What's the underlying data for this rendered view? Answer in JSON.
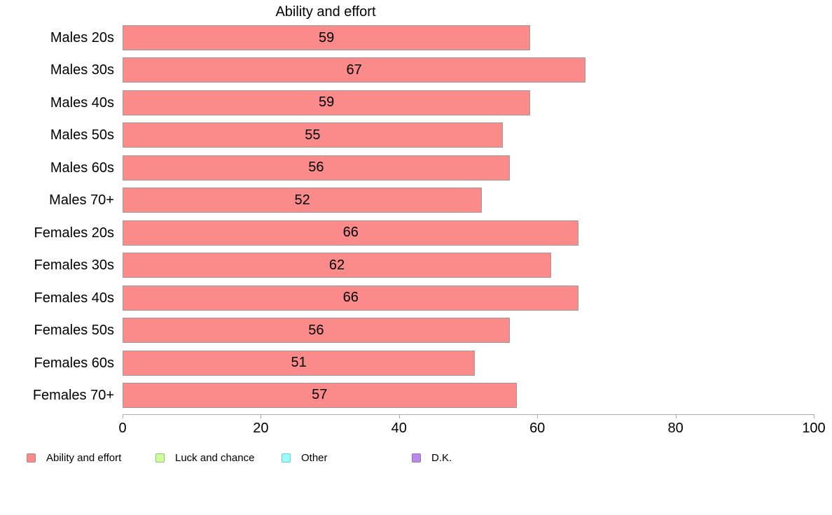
{
  "chart_data": {
    "type": "bar",
    "orientation": "horizontal",
    "title": "Ability and effort",
    "categories": [
      "Males 20s",
      "Males 30s",
      "Males 40s",
      "Males 50s",
      "Males 60s",
      "Males 70+",
      "Females 20s",
      "Females 30s",
      "Females 40s",
      "Females 50s",
      "Females 60s",
      "Females 70+"
    ],
    "values": [
      59,
      67,
      59,
      55,
      56,
      52,
      66,
      62,
      66,
      56,
      51,
      57
    ],
    "series_name": "Ability and effort",
    "xlabel": "",
    "ylabel": "",
    "xlim": [
      0,
      100
    ],
    "x_ticks": [
      0,
      20,
      40,
      60,
      80,
      100
    ],
    "grid": false,
    "legend_position": "bottom",
    "legend": [
      {
        "label": "Ability and effort",
        "color": "#FB8A8A",
        "border": "#AF8686"
      },
      {
        "label": "Luck and chance",
        "color": "#CCFF99",
        "border": "#9CBD7E"
      },
      {
        "label": "Other",
        "color": "#99FFFF",
        "border": "#79C4C4"
      },
      {
        "label": "D.K.",
        "color": "#B98AE8",
        "border": "#9473BD"
      }
    ]
  },
  "colors": {
    "bar_fill": "#FB8A8A",
    "bar_border": "#9C9C9C",
    "axis": "#ABABAB",
    "text": "#000000",
    "background": "#FFFFFF"
  }
}
